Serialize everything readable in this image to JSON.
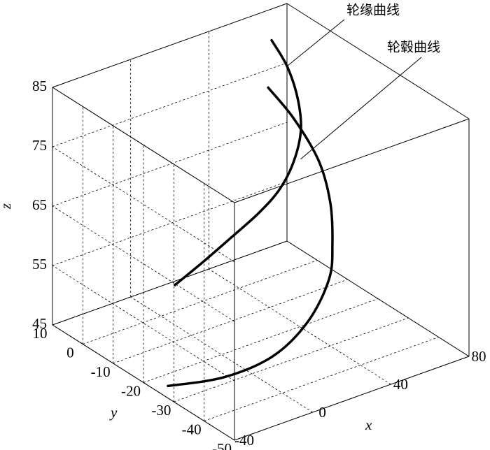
{
  "chart_data": {
    "type": "line3d",
    "xlabel": "x",
    "ylabel": "y",
    "zlabel": "z",
    "xlim": [
      -40,
      80
    ],
    "xticks": [
      -40,
      0,
      40,
      80
    ],
    "ylim": [
      -50,
      10
    ],
    "yticks": [
      -50,
      -40,
      -30,
      -20,
      -10,
      0,
      10
    ],
    "zlim": [
      45,
      85
    ],
    "zticks": [
      45,
      55,
      65,
      75,
      85
    ],
    "grid": true,
    "series": [
      {
        "name": "轮缘曲线",
        "color": "#000000",
        "x": [
          56.6,
          64.5,
          69.9,
          71.6,
          68.1,
          60.9,
          50.1,
          35.8,
          21.5,
          7.1
        ],
        "y": [
          0,
          0,
          0,
          0,
          0,
          0,
          0,
          0,
          0,
          0
        ],
        "z": [
          84.8,
          79.5,
          73.5,
          68.0,
          63.2,
          59.3,
          56.5,
          54.0,
          51.6,
          49.4
        ]
      },
      {
        "name": "轮毂曲线",
        "color": "#000000",
        "x": [
          39.3,
          52.5,
          65.1,
          71.1,
          72.2,
          62.7,
          41.1,
          15.4,
          -11.2,
          -39.9
        ],
        "y": [
          -10,
          -10,
          -10,
          -10,
          -10,
          -15,
          -22,
          -27,
          -28,
          -28
        ],
        "z": [
          82.1,
          75.3,
          66.8,
          59.0,
          51.8,
          48.7,
          46.4,
          45.2,
          45.1,
          47.0
        ]
      }
    ]
  }
}
